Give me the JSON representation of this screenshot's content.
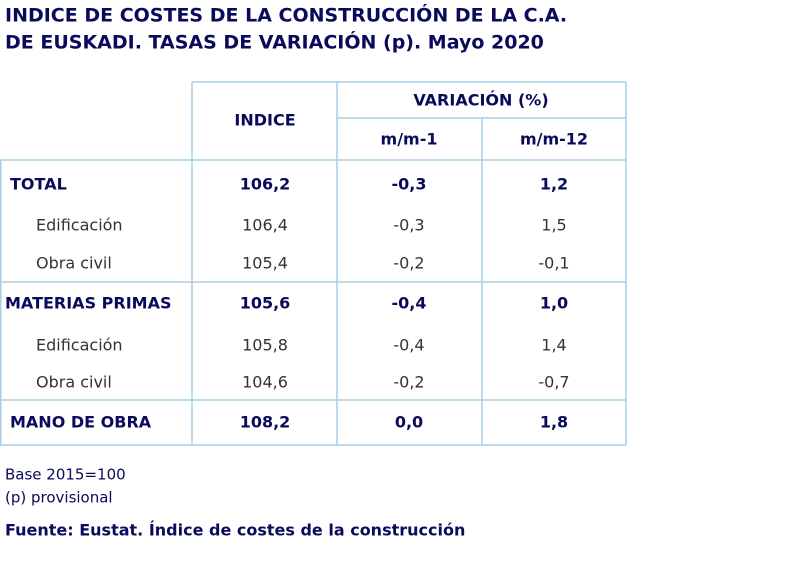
{
  "title": [
    "INDICE DE COSTES DE LA CONSTRUCCIÓN DE LA C.A.",
    "DE EUSKADI. TASAS DE VARIACIÓN (p). Mayo 2020"
  ],
  "table": {
    "header": {
      "indice": "INDICE",
      "variacion": "VARIACIÓN (%)",
      "mm1": "m/m-1",
      "mm12": "m/m-12"
    },
    "rows": [
      [
        "TOTAL",
        "106,2",
        "-0,3",
        "1,2"
      ],
      [
        "Edificación",
        "106,4",
        "-0,3",
        "1,5"
      ],
      [
        "Obra civil",
        "105,4",
        "-0,2",
        "-0,1"
      ],
      [
        "MATERIAS PRIMAS",
        "105,6",
        "-0,4",
        "1,0"
      ],
      [
        "Edificación",
        "105,8",
        "-0,4",
        "1,4"
      ],
      [
        "Obra civil",
        "104,6",
        "-0,2",
        "-0,7"
      ],
      [
        "MANO DE OBRA",
        "108,2",
        "0,0",
        "1,8"
      ]
    ]
  },
  "notes": [
    "Base 2015=100",
    "(p) provisional"
  ],
  "source": "Fuente: Eustat. Índice de costes de la construcción"
}
